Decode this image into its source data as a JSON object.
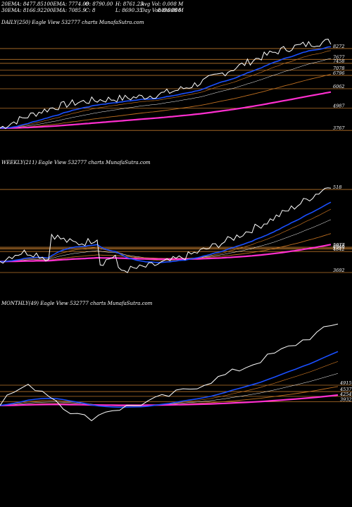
{
  "header": {
    "ema20": "20EMA: 8477.85",
    "ema100": "100EMA: 7774.08",
    "open": "O: 8790.00",
    "high": "H: 8761.25",
    "avg_vol": "Avg Vol: 0.008 M",
    "ema30": "30EMA: 8166.92",
    "ema200": "200EMA: 7085.9",
    "close": "C: 8",
    "low": "L: 8690.35",
    "day_vol": "Day Vol: 0.008 M",
    "overlap": "8496.006"
  },
  "panels": [
    {
      "title": "DAILY(250) Eagle   View  532777 charts MunafaSutra.com"
    },
    {
      "title": "WEEKLY(211) Eagle   View  532777 charts MunafaSutra.com"
    },
    {
      "title": "MONTHLY(49) Eagle   View  532777 charts MunafaSutra.com"
    }
  ],
  "colors": {
    "price": "#ffffff",
    "ema_short": "#1a4fff",
    "ema_mid": "#ff2fd0",
    "ema_long": "#c07020",
    "level_line": "#b8742a",
    "background": "#000000"
  },
  "chart_data": [
    {
      "type": "line",
      "title": "DAILY(250)",
      "levels": [
        8272,
        7677,
        7458,
        7078,
        6796,
        6062,
        3767,
        518,
        4987
      ],
      "ylim": [
        3000,
        9200
      ]
    },
    {
      "type": "line",
      "title": "WEEKLY(211)",
      "levels": [
        5077,
        5018,
        4969,
        4842,
        3692
      ],
      "ylim": [
        3000,
        9200
      ]
    },
    {
      "type": "line",
      "title": "MONTHLY(49)",
      "levels": [
        4915,
        4537,
        4254,
        3932
      ],
      "ylim": [
        2500,
        9200
      ]
    }
  ]
}
